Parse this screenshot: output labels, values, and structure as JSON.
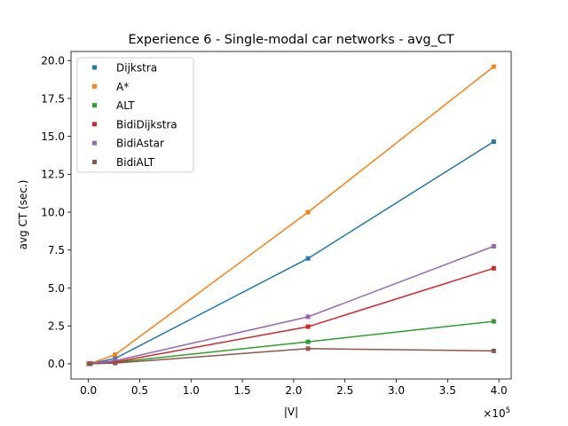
{
  "chart_data": {
    "type": "line",
    "title": "Experience 6 - Single-modal car networks - avg_CT",
    "xlabel": "|V|",
    "ylabel": "avg CT (sec.)",
    "x_scale_label": "×10",
    "x_scale_exp": "5",
    "x_multiplier": 100000,
    "xlim": [
      -0.17,
      4.12
    ],
    "ylim": [
      -1.0,
      20.6
    ],
    "x_ticks": [
      0.0,
      0.5,
      1.0,
      1.5,
      2.0,
      2.5,
      3.0,
      3.5,
      4.0
    ],
    "x_tick_labels": [
      "0.0",
      "0.5",
      "1.0",
      "1.5",
      "2.0",
      "2.5",
      "3.0",
      "3.5",
      "4.0"
    ],
    "y_ticks": [
      0.0,
      2.5,
      5.0,
      7.5,
      10.0,
      12.5,
      15.0,
      17.5,
      20.0
    ],
    "y_tick_labels": [
      "0.0",
      "2.5",
      "5.0",
      "7.5",
      "10.0",
      "12.5",
      "15.0",
      "17.5",
      "20.0"
    ],
    "grid": false,
    "legend_position": "top-left",
    "x": [
      0.003,
      0.02,
      0.26,
      2.14,
      3.95
    ],
    "series": [
      {
        "name": "Dijkstra",
        "color": "#1f77b4",
        "values": [
          0.0,
          0.02,
          0.35,
          6.95,
          14.65
        ]
      },
      {
        "name": "A*",
        "color": "#ff7f0e",
        "values": [
          0.0,
          0.03,
          0.6,
          10.0,
          19.6
        ]
      },
      {
        "name": "ALT",
        "color": "#2ca02c",
        "values": [
          0.0,
          0.01,
          0.1,
          1.45,
          2.8
        ]
      },
      {
        "name": "BidiDijkstra",
        "color": "#d62728",
        "values": [
          0.0,
          0.01,
          0.12,
          2.45,
          6.3
        ]
      },
      {
        "name": "BidiAstar",
        "color": "#9467bd",
        "values": [
          0.0,
          0.02,
          0.2,
          3.1,
          7.75
        ]
      },
      {
        "name": "BidiALT",
        "color": "#8c564b",
        "values": [
          0.0,
          0.0,
          0.05,
          1.0,
          0.85
        ]
      }
    ]
  }
}
